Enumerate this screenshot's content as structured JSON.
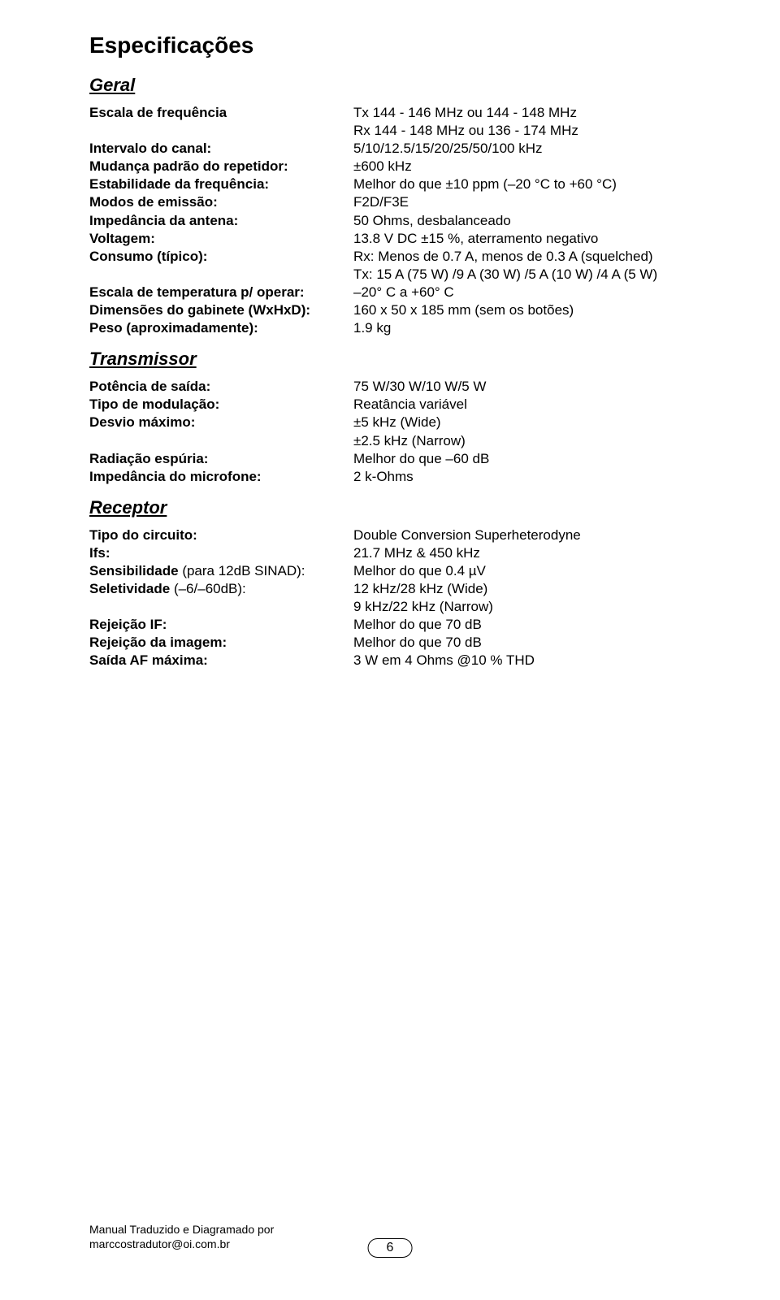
{
  "title": "Especificações",
  "sections": {
    "geral": {
      "heading": "Geral",
      "rows": [
        {
          "label": "Escala de frequência",
          "lbold": true,
          "value": "Tx 144 - 146 MHz ou 144 - 148 MHz"
        },
        {
          "label": "",
          "value": "Rx 144 - 148 MHz ou 136 - 174 MHz"
        },
        {
          "label": "Intervalo do canal:",
          "lbold": true,
          "value": "5/10/12.5/15/20/25/50/100 kHz"
        },
        {
          "label": "Mudança padrão do repetidor:",
          "lbold": true,
          "value": "±600 kHz"
        },
        {
          "label": "Estabilidade da frequência:",
          "lbold": true,
          "value": "Melhor do que ±10 ppm (–20 °C to +60 °C)"
        },
        {
          "label": "Modos de emissão:",
          "lbold": true,
          "value": "F2D/F3E"
        },
        {
          "label": "Impedância da antena:",
          "lbold": true,
          "value": "50 Ohms, desbalanceado"
        },
        {
          "label": "Voltagem:",
          "lbold": true,
          "value": "13.8 V DC ±15 %, aterramento negativo"
        },
        {
          "label": "Consumo (típico):",
          "lbold": true,
          "value": "Rx: Menos de 0.7 A, menos de 0.3 A (squelched)"
        },
        {
          "label": "",
          "value": "Tx: 15 A (75 W) /9 A (30 W) /5 A (10 W) /4 A (5 W)"
        },
        {
          "label": "Escala de temperatura p/ operar:",
          "lbold": true,
          "value": "–20° C a +60° C"
        },
        {
          "label": "Dimensões do gabinete (WxHxD):",
          "lbold": true,
          "value": "160 x 50 x 185 mm (sem os botões)"
        },
        {
          "label": "Peso (aproximadamente):",
          "lbold": true,
          "value": "1.9 kg"
        }
      ]
    },
    "transmissor": {
      "heading": "Transmissor",
      "rows": [
        {
          "label": "Potência de saída:",
          "lbold": true,
          "value": "75 W/30 W/10 W/5 W"
        },
        {
          "label": "Tipo de modulação:",
          "lbold": true,
          "value": "Reatância variável"
        },
        {
          "label": "Desvio máximo:",
          "lbold": true,
          "value": "±5 kHz (Wide)"
        },
        {
          "label": "",
          "value": "±2.5 kHz (Narrow)"
        },
        {
          "label": "Radiação espúria:",
          "lbold": true,
          "value": "Melhor do que –60 dB"
        },
        {
          "label": "Impedância do microfone:",
          "lbold": true,
          "value": "2 k-Ohms"
        }
      ]
    },
    "receptor": {
      "heading": "Receptor",
      "rows": [
        {
          "label": "Tipo do circuito:",
          "lbold": true,
          "value": "Double Conversion Superheterodyne"
        },
        {
          "label": "Ifs:",
          "lbold": true,
          "value": "21.7 MHz & 450 kHz"
        },
        {
          "label": "Sensibilidade",
          "ltail": " (para 12dB SINAD):",
          "lbold": true,
          "value": "Melhor do que 0.4 µV"
        },
        {
          "label": "Seletividade",
          "ltail": " (–6/–60dB):",
          "lbold": true,
          "value": "12 kHz/28 kHz (Wide)"
        },
        {
          "label": "",
          "value": "9 kHz/22 kHz (Narrow)"
        },
        {
          "label": "Rejeição IF:",
          "lbold": true,
          "value": "Melhor do que 70 dB"
        },
        {
          "label": "Rejeição da imagem:",
          "lbold": true,
          "value": "Melhor do que 70 dB"
        },
        {
          "label": "Saída AF máxima:",
          "lbold": true,
          "value": "3 W em 4 Ohms @10 % THD"
        }
      ]
    }
  },
  "footer": {
    "line1": "Manual Traduzido e Diagramado por",
    "line2": "marccostradutor@oi.com.br"
  },
  "page_number": "6"
}
